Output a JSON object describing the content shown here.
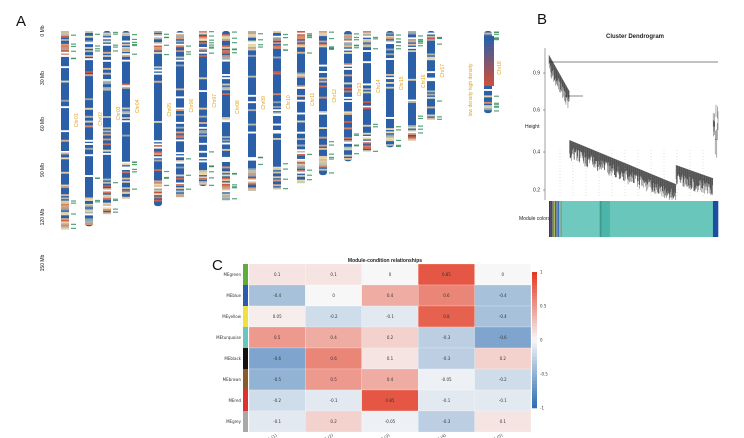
{
  "panels": {
    "a": "A",
    "b": "B",
    "c": "C"
  },
  "chromosome_map": {
    "axis_labels": [
      "0 Mb",
      "30 Mb",
      "60 Mb",
      "90 Mb",
      "120 Mb",
      "150 Mb"
    ],
    "chromosomes": [
      "Chr01",
      "Chr02",
      "Chr03",
      "Chr04",
      "Chr05",
      "Chr06",
      "Chr07",
      "Chr08",
      "Chr09",
      "Chr10",
      "Chr11",
      "Chr12",
      "Chr13",
      "Chr14",
      "Chr15",
      "Chr16",
      "Chr17",
      "Chr18"
    ],
    "lengths_mb": [
      128,
      126,
      118,
      108,
      113,
      107,
      100,
      109,
      103,
      102,
      98,
      93,
      84,
      79,
      75,
      72,
      57,
      53
    ],
    "legend_label": "low density  high density",
    "colors": {
      "low": "#2b5fa8",
      "mid": "#e8ddb0",
      "high": "#c9503c",
      "label": "#e0a21a",
      "marker": "#2e8b57"
    }
  },
  "dendrogram": {
    "title": "Cluster Dendrogram",
    "ylabel": "Height",
    "yticks": [
      "0.9",
      "0.6",
      "0.4",
      "0.2"
    ],
    "bar_label": "Module colors",
    "module_colors": [
      "#1f3e8c",
      "#e06a2a",
      "#7a2a7a",
      "#3b9b8b",
      "#6fc9be",
      "#2a5db0",
      "#f0c030",
      "#4ab5a8",
      "#69c6bb",
      "#1d4fa0"
    ]
  },
  "heatmap": {
    "title": "Module-condition relationships",
    "rows": [
      "MEgreen",
      "MEblue",
      "MEyellow",
      "MEturquoise",
      "MEblack",
      "MEbrown",
      "MEred",
      "MEgrey"
    ],
    "row_colors": [
      "#5fae3c",
      "#2a5db0",
      "#f0e040",
      "#69c6bb",
      "#111111",
      "#8a5a2a",
      "#e03030",
      "#a8a8a8"
    ],
    "columns": [
      "stage1 (1)",
      "stage2 (2)",
      "stage3 (3)",
      "stage4 (4)",
      "stage5 (5)"
    ],
    "values": [
      [
        0.1,
        0.1,
        0.0,
        0.85,
        0.0
      ],
      [
        -0.4,
        0.0,
        0.4,
        0.6,
        -0.4
      ],
      [
        0.05,
        -0.2,
        -0.1,
        0.8,
        -0.4
      ],
      [
        0.5,
        0.4,
        0.2,
        -0.3,
        -0.6
      ],
      [
        -0.6,
        0.6,
        0.1,
        -0.3,
        0.2
      ],
      [
        -0.5,
        0.5,
        0.4,
        -0.05,
        -0.2
      ],
      [
        -0.2,
        -0.1,
        0.85,
        -0.1,
        -0.1
      ],
      [
        -0.1,
        0.2,
        -0.05,
        -0.3,
        0.1
      ]
    ],
    "cell_labels": [
      [
        "0.1",
        "0.1",
        "0",
        "0.85",
        "0"
      ],
      [
        "-0.4",
        "0",
        "0.4",
        "0.6",
        "-0.4"
      ],
      [
        "0.05",
        "-0.2",
        "-0.1",
        "0.8",
        "-0.4"
      ],
      [
        "0.5",
        "0.4",
        "0.2",
        "-0.3",
        "-0.6"
      ],
      [
        "-0.6",
        "0.6",
        "0.1",
        "-0.3",
        "0.2"
      ],
      [
        "-0.5",
        "0.5",
        "0.4",
        "-0.05",
        "-0.2"
      ],
      [
        "-0.2",
        "-0.1",
        "0.85",
        "-0.1",
        "-0.1"
      ],
      [
        "-0.1",
        "0.2",
        "-0.05",
        "-0.3",
        "0.1"
      ]
    ],
    "scale_ticks": [
      "1",
      "0.5",
      "0",
      "-0.5",
      "-1"
    ],
    "colors": {
      "neg": "#2f6fb2",
      "zero": "#f7f7f7",
      "pos": "#e23b24"
    }
  }
}
